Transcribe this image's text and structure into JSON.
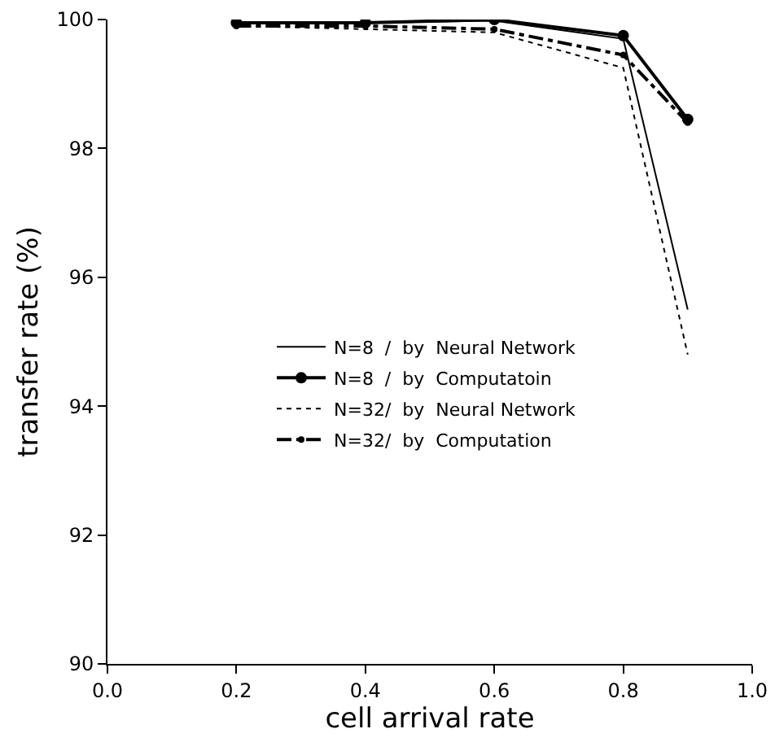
{
  "chart_data": {
    "type": "line",
    "xlabel": "cell arrival rate",
    "ylabel": "transfer rate (%)",
    "x": [
      0.2,
      0.4,
      0.6,
      0.8,
      0.9
    ],
    "xlim": [
      0,
      1
    ],
    "xticks": [
      {
        "value": 0,
        "label": "0.0"
      },
      0.2,
      0.4,
      0.6,
      0.8,
      {
        "value": 1,
        "label": "1.0"
      }
    ],
    "ylim": [
      90,
      100
    ],
    "yticks": [
      90,
      92,
      94,
      96,
      98,
      100
    ],
    "grid": false,
    "legend": "left",
    "series": [
      {
        "name": "N=8  /  by  Neural Network",
        "color": "#000000",
        "line_style": "solid",
        "marker": "none",
        "values": [
          99.95,
          99.95,
          99.98,
          99.7,
          95.5
        ]
      },
      {
        "name": "N=8  /  by  Computatoin",
        "color": "#000000",
        "line_style": "solid",
        "marker": "circle",
        "values": [
          99.95,
          99.95,
          100.0,
          99.75,
          98.45
        ]
      },
      {
        "name": "N=32/  by  Neural Network",
        "color": "#000000",
        "line_style": "dotted",
        "marker": "none",
        "values": [
          99.9,
          99.85,
          99.8,
          99.25,
          94.8
        ]
      },
      {
        "name": "N=32/  by  Computation",
        "color": "#000000",
        "line_style": "dashed",
        "marker": "circle",
        "values": [
          99.9,
          99.9,
          99.85,
          99.45,
          98.4
        ]
      }
    ]
  }
}
